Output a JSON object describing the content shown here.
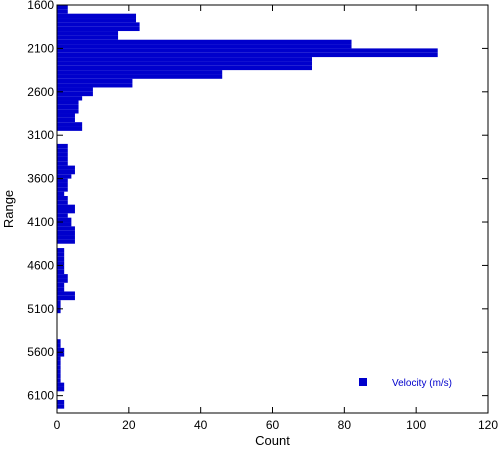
{
  "chart_data": {
    "type": "bar",
    "orientation": "horizontal",
    "title": "",
    "xlabel": "Count",
    "ylabel": "Range",
    "xlim": [
      0,
      120
    ],
    "ylim": [
      1600,
      6300
    ],
    "y_inverted": true,
    "x_ticks": [
      "0",
      "20",
      "40",
      "60",
      "80",
      "100",
      "120"
    ],
    "y_ticks": [
      "1600",
      "2100",
      "2600",
      "3100",
      "3600",
      "4100",
      "4600",
      "5100",
      "5600",
      "6100"
    ],
    "bin_width": 50,
    "grid": false,
    "legend_position": "bottom-right",
    "series": [
      {
        "name": "Velocity (m/s)",
        "color": "#0000CC",
        "bin_starts": [
          1600,
          1650,
          1700,
          1750,
          1800,
          1850,
          1900,
          1950,
          2000,
          2050,
          2100,
          2150,
          2200,
          2250,
          2300,
          2350,
          2400,
          2450,
          2500,
          2550,
          2600,
          2650,
          2700,
          2750,
          2800,
          2850,
          2900,
          2950,
          3000,
          3050,
          3100,
          3150,
          3200,
          3250,
          3300,
          3350,
          3400,
          3450,
          3500,
          3550,
          3600,
          3650,
          3700,
          3750,
          3800,
          3850,
          3900,
          3950,
          4000,
          4050,
          4100,
          4150,
          4200,
          4250,
          4300,
          4350,
          4400,
          4450,
          4500,
          4550,
          4600,
          4650,
          4700,
          4750,
          4800,
          4850,
          4900,
          4950,
          5000,
          5050,
          5100,
          5150,
          5200,
          5250,
          5300,
          5350,
          5400,
          5450,
          5500,
          5550,
          5600,
          5650,
          5700,
          5750,
          5800,
          5850,
          5900,
          5950,
          6000,
          6050,
          6100,
          6150,
          6200,
          6250
        ],
        "counts": [
          3,
          3,
          22,
          22,
          23,
          23,
          17,
          17,
          82,
          82,
          106,
          106,
          71,
          71,
          71,
          46,
          46,
          21,
          21,
          10,
          10,
          7,
          6,
          6,
          6,
          5,
          5,
          7,
          7,
          0,
          0,
          0,
          3,
          3,
          3,
          3,
          3,
          5,
          5,
          4,
          3,
          3,
          3,
          2,
          3,
          3,
          5,
          5,
          3,
          4,
          4,
          5,
          5,
          5,
          5,
          0,
          2,
          2,
          2,
          2,
          2,
          2,
          3,
          3,
          2,
          2,
          5,
          5,
          1,
          1,
          1,
          0,
          0,
          0,
          0,
          0,
          0,
          1,
          1,
          2,
          2,
          1,
          1,
          1,
          1,
          1,
          1,
          2,
          2,
          0,
          0,
          2,
          2,
          0
        ]
      }
    ]
  }
}
